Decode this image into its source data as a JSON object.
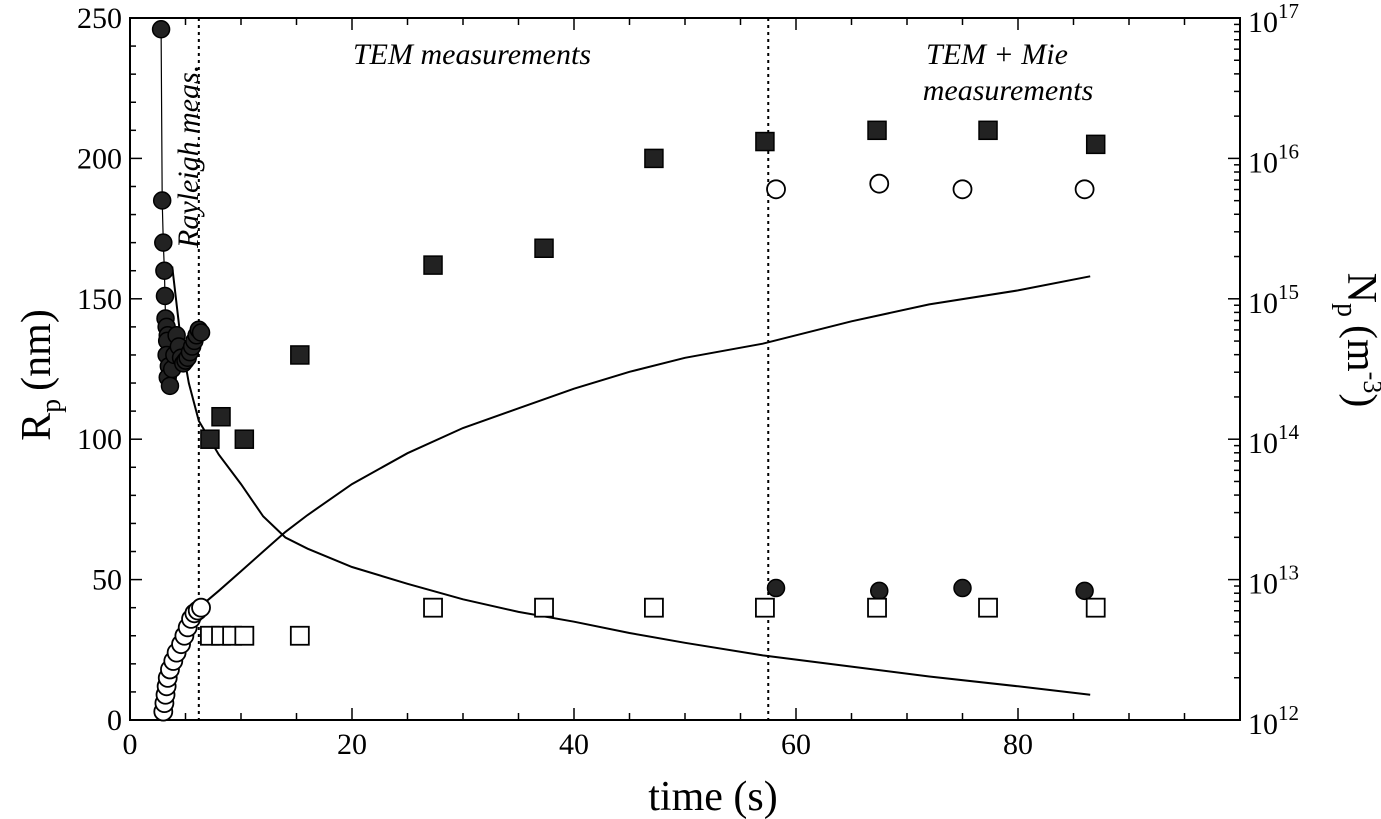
{
  "chart_data": {
    "type": "scatter",
    "xlabel": "time (s)",
    "ylabel_left": {
      "main": "R",
      "sub": "p",
      "unit": "(nm)"
    },
    "ylabel_right": {
      "main": "N",
      "sub": "p",
      "unit_open": "(m",
      "unit_exp": "-3",
      "unit_close": ")"
    },
    "x_range": [
      0,
      100
    ],
    "y_left_range": [
      0,
      250
    ],
    "y_right_range": [
      1000000000000.0,
      1e+17
    ],
    "y_right_scale": "log",
    "x_ticks": [
      "0",
      "20",
      "40",
      "60",
      "80"
    ],
    "x_tick_values": [
      0,
      20,
      40,
      60,
      80
    ],
    "y_left_ticks": [
      "0",
      "50",
      "100",
      "150",
      "200",
      "250"
    ],
    "y_left_tick_values": [
      0,
      50,
      100,
      150,
      200,
      250
    ],
    "y_right_ticks": [
      {
        "base": "10",
        "exp": "12",
        "value": 12
      },
      {
        "base": "10",
        "exp": "13",
        "value": 13
      },
      {
        "base": "10",
        "exp": "14",
        "value": 14
      },
      {
        "base": "10",
        "exp": "15",
        "value": 15
      },
      {
        "base": "10",
        "exp": "16",
        "value": 16
      },
      {
        "base": "10",
        "exp": "17",
        "value": 17
      }
    ],
    "grid": false,
    "vertical_lines_x": [
      6.2,
      57.5
    ],
    "annotations": {
      "rayleigh": "Rayleigh meas.",
      "tem": "TEM measurements",
      "tem_mie_line1": "TEM + Mie",
      "tem_mie_line2": "measurements"
    },
    "series": [
      {
        "marker": "filled-circle",
        "axis": "left",
        "points": [
          [
            2.8,
            246
          ],
          [
            2.9,
            185
          ],
          [
            3.0,
            170
          ],
          [
            3.1,
            160
          ],
          [
            3.15,
            151
          ],
          [
            3.2,
            143
          ],
          [
            3.3,
            140
          ],
          [
            3.4,
            137
          ],
          [
            3.35,
            135
          ],
          [
            3.3,
            130
          ],
          [
            3.5,
            126
          ],
          [
            3.4,
            122
          ],
          [
            3.6,
            119
          ],
          [
            3.8,
            125
          ],
          [
            4.0,
            130
          ],
          [
            4.2,
            137
          ],
          [
            4.4,
            133
          ],
          [
            4.6,
            129
          ],
          [
            4.8,
            127
          ],
          [
            5.0,
            128
          ],
          [
            5.2,
            129
          ],
          [
            5.4,
            131
          ],
          [
            5.6,
            133
          ],
          [
            5.8,
            135
          ],
          [
            6.0,
            137
          ],
          [
            6.2,
            139
          ],
          [
            6.4,
            138
          ],
          [
            58.2,
            47
          ],
          [
            67.5,
            46
          ],
          [
            75.0,
            47
          ],
          [
            86.0,
            46
          ]
        ]
      },
      {
        "marker": "filled-square",
        "axis": "left",
        "points": [
          [
            7.2,
            100
          ],
          [
            8.2,
            108
          ],
          [
            10.3,
            100
          ],
          [
            15.3,
            130
          ],
          [
            27.3,
            162
          ],
          [
            37.3,
            168
          ],
          [
            47.2,
            200
          ],
          [
            57.2,
            206
          ],
          [
            67.3,
            210
          ],
          [
            77.3,
            210
          ],
          [
            87.0,
            205
          ]
        ]
      },
      {
        "marker": "open-circle",
        "axis": "left",
        "points": [
          [
            3.0,
            3
          ],
          [
            3.1,
            6
          ],
          [
            3.2,
            9
          ],
          [
            3.3,
            12
          ],
          [
            3.4,
            15
          ],
          [
            3.6,
            18
          ],
          [
            3.9,
            21
          ],
          [
            4.2,
            24
          ],
          [
            4.6,
            27
          ],
          [
            4.9,
            30
          ],
          [
            5.2,
            33
          ],
          [
            5.5,
            36
          ],
          [
            5.8,
            38
          ],
          [
            6.1,
            39
          ],
          [
            6.4,
            40
          ],
          [
            58.2,
            189
          ],
          [
            67.5,
            191
          ],
          [
            75.0,
            189
          ],
          [
            86.0,
            189
          ]
        ]
      },
      {
        "marker": "open-square",
        "axis": "left",
        "points": [
          [
            7.2,
            30
          ],
          [
            8.2,
            30
          ],
          [
            9.2,
            30
          ],
          [
            10.3,
            30
          ],
          [
            15.3,
            30
          ],
          [
            27.3,
            40
          ],
          [
            37.3,
            40
          ],
          [
            47.2,
            40
          ],
          [
            57.2,
            40
          ],
          [
            67.3,
            40
          ],
          [
            77.3,
            40
          ],
          [
            87.0,
            40
          ]
        ]
      },
      {
        "marker": "line",
        "axis": "right",
        "points": [
          [
            3.8,
            15.23
          ],
          [
            4.5,
            14.76
          ],
          [
            5.3,
            14.4
          ],
          [
            6.2,
            14.13
          ],
          [
            8.0,
            13.89
          ],
          [
            10.0,
            13.68
          ],
          [
            12.0,
            13.45
          ],
          [
            14.0,
            13.3
          ],
          [
            16.0,
            13.22
          ],
          [
            20.0,
            13.09
          ],
          [
            25.0,
            12.97
          ],
          [
            30.0,
            12.86
          ],
          [
            35.0,
            12.77
          ],
          [
            40.0,
            12.7
          ],
          [
            45.0,
            12.62
          ],
          [
            50.0,
            12.55
          ],
          [
            57.0,
            12.46
          ],
          [
            65.0,
            12.38
          ],
          [
            72.0,
            12.31
          ],
          [
            80.0,
            12.24
          ],
          [
            86.5,
            12.18
          ]
        ]
      },
      {
        "marker": "line",
        "axis": "left",
        "points": [
          [
            6.2,
            40
          ],
          [
            8.0,
            46
          ],
          [
            10.0,
            53
          ],
          [
            12.0,
            60
          ],
          [
            14.0,
            67
          ],
          [
            16.0,
            73
          ],
          [
            20.0,
            84
          ],
          [
            25.0,
            95
          ],
          [
            30.0,
            104
          ],
          [
            35.0,
            111
          ],
          [
            40.0,
            118
          ],
          [
            45.0,
            124
          ],
          [
            50.0,
            129
          ],
          [
            57.0,
            134
          ],
          [
            65.0,
            142
          ],
          [
            72.0,
            148
          ],
          [
            80.0,
            153
          ],
          [
            86.5,
            158
          ]
        ]
      }
    ]
  }
}
